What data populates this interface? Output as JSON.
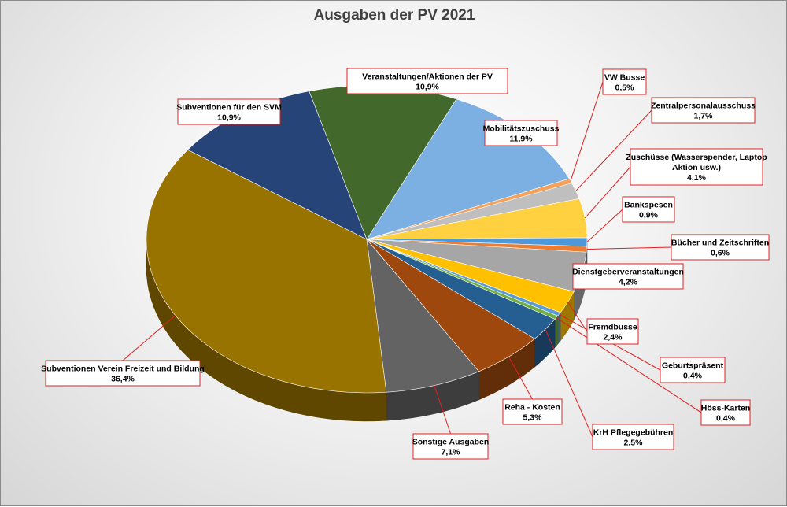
{
  "chart_data": {
    "type": "pie",
    "title": "Ausgaben der PV 2021",
    "slices": [
      {
        "label": "Mobilitätszuschuss",
        "value_text": "11,9%",
        "value": 11.9,
        "color": "#7cb0e3"
      },
      {
        "label": "VW Busse",
        "value_text": "0,5%",
        "value": 0.5,
        "color": "#f4a15b"
      },
      {
        "label": "Zentralpersonalausschuss",
        "value_text": "1,7%",
        "value": 1.7,
        "color": "#bfbfbf"
      },
      {
        "label": "Zuschüsse (Wasserspender, Laptop Aktion usw.)",
        "value_text": "4,1%",
        "value": 4.1,
        "color": "#ffd040"
      },
      {
        "label": "Bankspesen",
        "value_text": "0,9%",
        "value": 0.9,
        "color": "#4e97d8"
      },
      {
        "label": "Bücher und Zeitschriften",
        "value_text": "0,6%",
        "value": 0.6,
        "color": "#ed7d31"
      },
      {
        "label": "Dienstgeberveranstaltungen",
        "value_text": "4,2%",
        "value": 4.2,
        "color": "#a6a6a6"
      },
      {
        "label": "Fremdbusse",
        "value_text": "2,4%",
        "value": 2.4,
        "color": "#ffc000"
      },
      {
        "label": "Geburtspräsent",
        "value_text": "0,4%",
        "value": 0.4,
        "color": "#5b9bd5"
      },
      {
        "label": "Höss-Karten",
        "value_text": "0,4%",
        "value": 0.4,
        "color": "#70ad47"
      },
      {
        "label": "KrH Pflegegebühren",
        "value_text": "2,5%",
        "value": 2.5,
        "color": "#255e91"
      },
      {
        "label": "Reha - Kosten",
        "value_text": "5,3%",
        "value": 5.3,
        "color": "#9e480e"
      },
      {
        "label": "Sonstige Ausgaben",
        "value_text": "7,1%",
        "value": 7.1,
        "color": "#636363"
      },
      {
        "label": "Subventionen Verein Freizeit und Bildung",
        "value_text": "36,4%",
        "value": 36.4,
        "color": "#997300"
      },
      {
        "label": "Subventionen für den SVM",
        "value_text": "10,9%",
        "value": 10.9,
        "color": "#264478"
      },
      {
        "label": "Veranstaltungen/Aktionen der PV",
        "value_text": "10,9%",
        "value": 10.9,
        "color": "#43682b"
      }
    ]
  }
}
